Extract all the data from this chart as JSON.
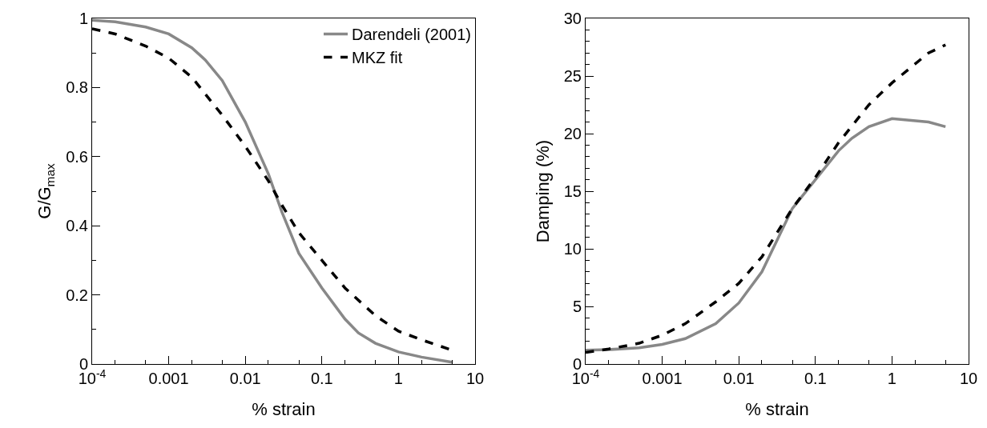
{
  "chart_data": [
    {
      "type": "line",
      "xlabel": "% strain",
      "ylabel": "G/G$_{max}$",
      "log": "x",
      "xlim": [
        0.0001,
        10
      ],
      "xticks": [
        {
          "value": 0.0001,
          "label": "10$^{-4}$"
        },
        0.001,
        0.01,
        0.1,
        1,
        10
      ],
      "ylim": [
        0,
        1
      ],
      "yticks": [
        0,
        0.2,
        0.4,
        0.6,
        0.8,
        1
      ],
      "grid": false,
      "legend": "top right",
      "marker": "none",
      "series": [
        {
          "name": "Darendeli (2001)",
          "color": "#888888",
          "line_style": "solid",
          "x": [
            0.0001,
            0.0002,
            0.0005,
            0.001,
            0.002,
            0.003,
            0.005,
            0.01,
            0.02,
            0.03,
            0.05,
            0.1,
            0.2,
            0.3,
            0.5,
            1,
            2,
            5
          ],
          "values": [
            0.995,
            0.99,
            0.975,
            0.955,
            0.915,
            0.88,
            0.82,
            0.7,
            0.55,
            0.44,
            0.32,
            0.22,
            0.13,
            0.09,
            0.06,
            0.035,
            0.02,
            0.005
          ]
        },
        {
          "name": "MKZ fit",
          "color": "#000000",
          "line_style": "dashed",
          "x": [
            0.0001,
            0.0002,
            0.0005,
            0.001,
            0.002,
            0.005,
            0.01,
            0.02,
            0.03,
            0.05,
            0.1,
            0.2,
            0.5,
            1,
            2,
            5
          ],
          "values": [
            0.97,
            0.955,
            0.92,
            0.885,
            0.83,
            0.72,
            0.63,
            0.53,
            0.46,
            0.38,
            0.3,
            0.22,
            0.14,
            0.095,
            0.07,
            0.04
          ]
        }
      ]
    },
    {
      "type": "line",
      "xlabel": "% strain",
      "ylabel": "Damping (%)",
      "log": "x",
      "xlim": [
        0.0001,
        10
      ],
      "xticks": [
        {
          "value": 0.0001,
          "label": "10$^{-4}$"
        },
        0.001,
        0.01,
        0.1,
        1,
        10
      ],
      "ylim": [
        0,
        30
      ],
      "yticks": [
        0,
        5,
        10,
        15,
        20,
        25,
        30
      ],
      "grid": false,
      "marker": "none",
      "series": [
        {
          "color": "#888888",
          "line_style": "solid",
          "x": [
            0.0001,
            0.0002,
            0.0005,
            0.001,
            0.002,
            0.005,
            0.01,
            0.02,
            0.05,
            0.1,
            0.2,
            0.3,
            0.5,
            1,
            3,
            5
          ],
          "values": [
            1.2,
            1.25,
            1.4,
            1.7,
            2.2,
            3.5,
            5.3,
            8,
            13.5,
            16,
            18.5,
            19.6,
            20.6,
            21.3,
            21,
            20.6
          ]
        },
        {
          "color": "#000000",
          "line_style": "dashed",
          "x": [
            0.0001,
            0.0002,
            0.0005,
            0.001,
            0.002,
            0.005,
            0.01,
            0.02,
            0.05,
            0.1,
            0.2,
            0.5,
            1,
            3,
            5
          ],
          "values": [
            1,
            1.3,
            1.8,
            2.5,
            3.5,
            5.4,
            7,
            9.3,
            13.5,
            16.2,
            19.2,
            22.5,
            24.4,
            27,
            27.7
          ]
        }
      ]
    }
  ]
}
